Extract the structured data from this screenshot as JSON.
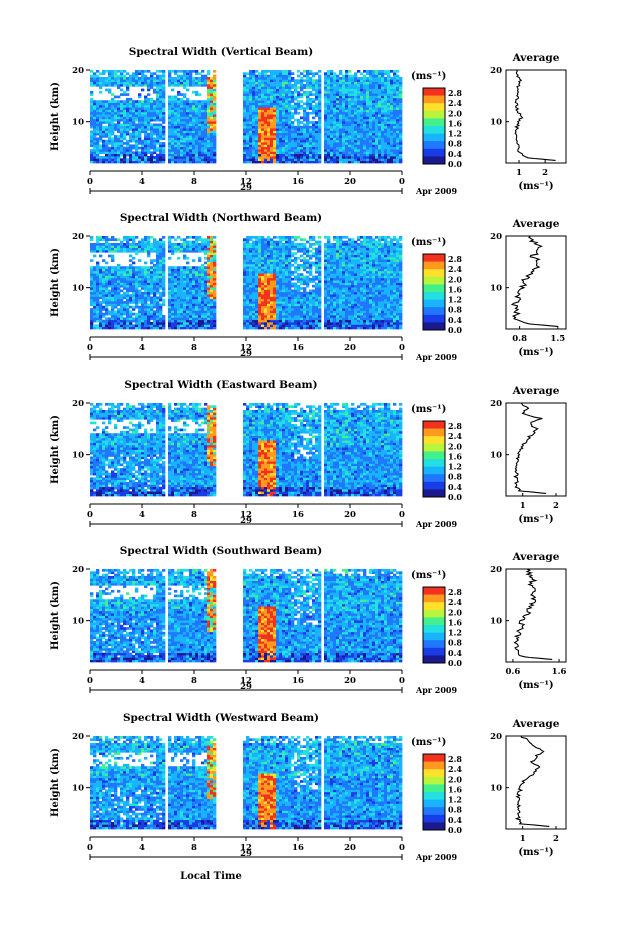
{
  "chart_data": {
    "type": "heatmap",
    "colorbar": {
      "unit": "(ms⁻¹)",
      "ticks": [
        "0.0",
        "0.4",
        "0.8",
        "1.2",
        "1.6",
        "2.0",
        "2.4",
        "2.8"
      ],
      "range": [
        0.0,
        3.0
      ],
      "colors": [
        "#1a1a8c",
        "#1a3ce6",
        "#1f78ff",
        "#19b4ff",
        "#22e0e0",
        "#44f08c",
        "#b8f53c",
        "#ffe02a",
        "#ff9a1e",
        "#f0321e"
      ]
    },
    "x_axis": {
      "ticks": [
        "0",
        "4",
        "8",
        "12",
        "16",
        "20",
        "0"
      ],
      "range": [
        0,
        24
      ],
      "date_label": "29",
      "month_label": "Apr 2009",
      "xlabel": "Local Time"
    },
    "y_axis": {
      "ylabel": "Height (km)",
      "ticks": [
        "10",
        "20"
      ],
      "range": [
        2,
        20
      ]
    },
    "avg_title": "Average",
    "avg_xlabel": "(ms⁻¹)",
    "gaps": [
      [
        5.8,
        6.1
      ],
      [
        9.8,
        11.8
      ],
      [
        17.7,
        17.95
      ]
    ],
    "panels": [
      {
        "title": "Spectral Width (Vertical Beam)",
        "avg_ticks": [
          "1",
          "2"
        ],
        "avg_range": [
          0.5,
          2.8
        ],
        "profile": {
          "heights": [
            2.5,
            3,
            4,
            5,
            6,
            7,
            8,
            9,
            10,
            11,
            12,
            13,
            14,
            15,
            16,
            17,
            18,
            19,
            20
          ],
          "values": [
            2.4,
            1.3,
            1.0,
            0.95,
            0.92,
            0.94,
            0.9,
            0.92,
            1.0,
            1.1,
            0.95,
            0.9,
            0.88,
            0.95,
            0.92,
            0.98,
            1.05,
            0.95,
            0.9
          ]
        }
      },
      {
        "title": "Spectral Width (Northward Beam)",
        "avg_ticks": [
          "0.8",
          "1.5"
        ],
        "avg_range": [
          0.55,
          1.65
        ],
        "profile": {
          "heights": [
            2.5,
            3,
            4,
            5,
            6,
            7,
            8,
            9,
            10,
            11,
            12,
            13,
            14,
            15,
            16,
            17,
            18,
            19,
            20
          ],
          "values": [
            1.5,
            0.95,
            0.72,
            0.75,
            0.7,
            0.72,
            0.78,
            0.8,
            0.88,
            0.85,
            0.95,
            1.05,
            1.1,
            1.15,
            1.05,
            1.1,
            1.2,
            1.05,
            1.0
          ]
        }
      },
      {
        "title": "Spectral Width (Eastward Beam)",
        "avg_ticks": [
          "1",
          "2"
        ],
        "avg_range": [
          0.5,
          2.3
        ],
        "profile": {
          "heights": [
            2.5,
            3,
            4,
            5,
            6,
            7,
            8,
            9,
            10,
            11,
            12,
            13,
            14,
            15,
            16,
            17,
            18,
            19,
            20
          ],
          "values": [
            1.7,
            0.9,
            0.8,
            0.82,
            0.8,
            0.85,
            0.8,
            0.85,
            0.9,
            0.95,
            1.0,
            1.15,
            1.3,
            1.45,
            1.2,
            1.55,
            1.0,
            1.15,
            0.95
          ]
        }
      },
      {
        "title": "Spectral Width (Southward Beam)",
        "avg_ticks": [
          "0.6",
          "1.6"
        ],
        "avg_range": [
          0.45,
          1.75
        ],
        "profile": {
          "heights": [
            2.5,
            3,
            4,
            5,
            6,
            7,
            8,
            9,
            10,
            11,
            12,
            13,
            14,
            15,
            16,
            17,
            18,
            19,
            20
          ],
          "values": [
            1.45,
            0.8,
            0.72,
            0.7,
            0.68,
            0.7,
            0.74,
            0.78,
            0.8,
            0.9,
            0.95,
            1.0,
            1.05,
            1.0,
            1.1,
            1.0,
            1.05,
            0.95,
            0.9
          ]
        }
      },
      {
        "title": "Spectral Width (Westward Beam)",
        "avg_ticks": [
          "1",
          "2"
        ],
        "avg_range": [
          0.5,
          2.3
        ],
        "profile": {
          "heights": [
            2.5,
            3,
            4,
            5,
            6,
            7,
            8,
            9,
            10,
            11,
            12,
            13,
            14,
            15,
            16,
            17,
            18,
            19,
            20
          ],
          "values": [
            1.8,
            0.95,
            0.85,
            0.88,
            0.85,
            0.9,
            0.85,
            0.9,
            0.95,
            1.0,
            1.2,
            1.35,
            1.5,
            1.3,
            1.4,
            1.6,
            1.35,
            1.2,
            0.95
          ]
        }
      }
    ]
  }
}
